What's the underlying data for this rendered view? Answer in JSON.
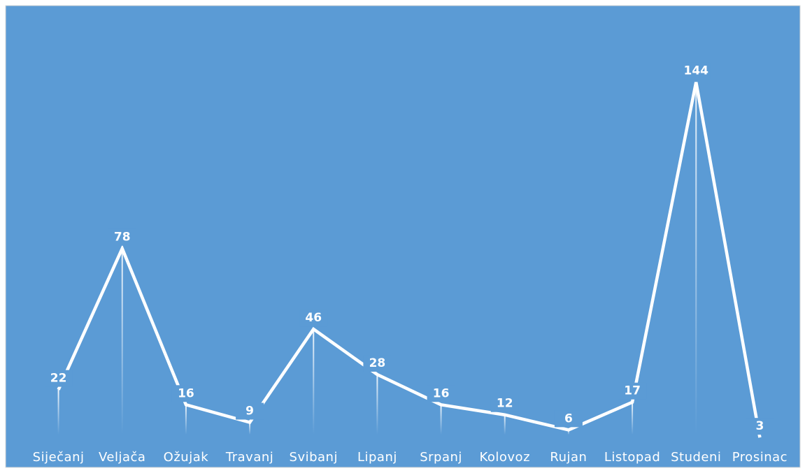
{
  "chart_data": {
    "type": "line",
    "categories": [
      "Siječanj",
      "Veljača",
      "Ožujak",
      "Travanj",
      "Svibanj",
      "Lipanj",
      "Srpanj",
      "Kolovoz",
      "Rujan",
      "Listopad",
      "Studeni",
      "Prosinac"
    ],
    "series": [
      {
        "color": "#ffffff",
        "values": [
          22,
          78,
          16,
          9,
          46,
          28,
          16,
          12,
          6,
          17,
          144,
          3
        ]
      }
    ],
    "ylim": [
      0,
      150
    ],
    "background": "#5b9bd5"
  }
}
